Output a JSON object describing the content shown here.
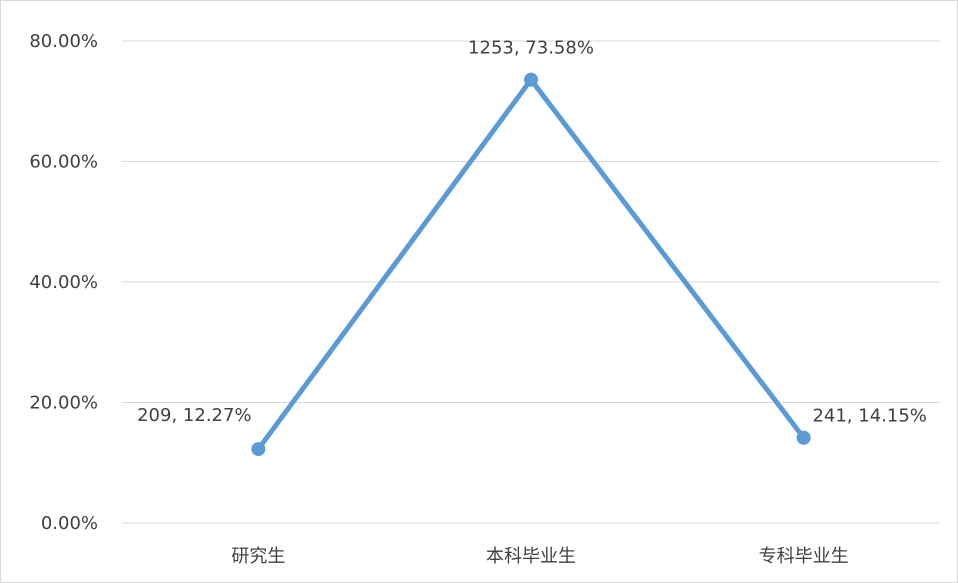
{
  "colors": {
    "series": "#5b9bd5",
    "grid": "#d9d9d9",
    "text": "#404040"
  },
  "chart_data": {
    "type": "line",
    "title": "",
    "xlabel": "",
    "ylabel": "",
    "categories": [
      "研究生",
      "本科毕业生",
      "专科毕业生"
    ],
    "ylim": [
      0,
      80
    ],
    "y_ticks": [
      "0.00%",
      "20.00%",
      "40.00%",
      "60.00%",
      "80.00%"
    ],
    "grid": true,
    "legend": "none",
    "series": [
      {
        "values": [
          12.27,
          73.58,
          14.15
        ],
        "counts": [
          209,
          1253,
          241
        ],
        "data_labels": [
          "209, 12.27%",
          "1253, 73.58%",
          "241, 14.15%"
        ]
      }
    ]
  }
}
